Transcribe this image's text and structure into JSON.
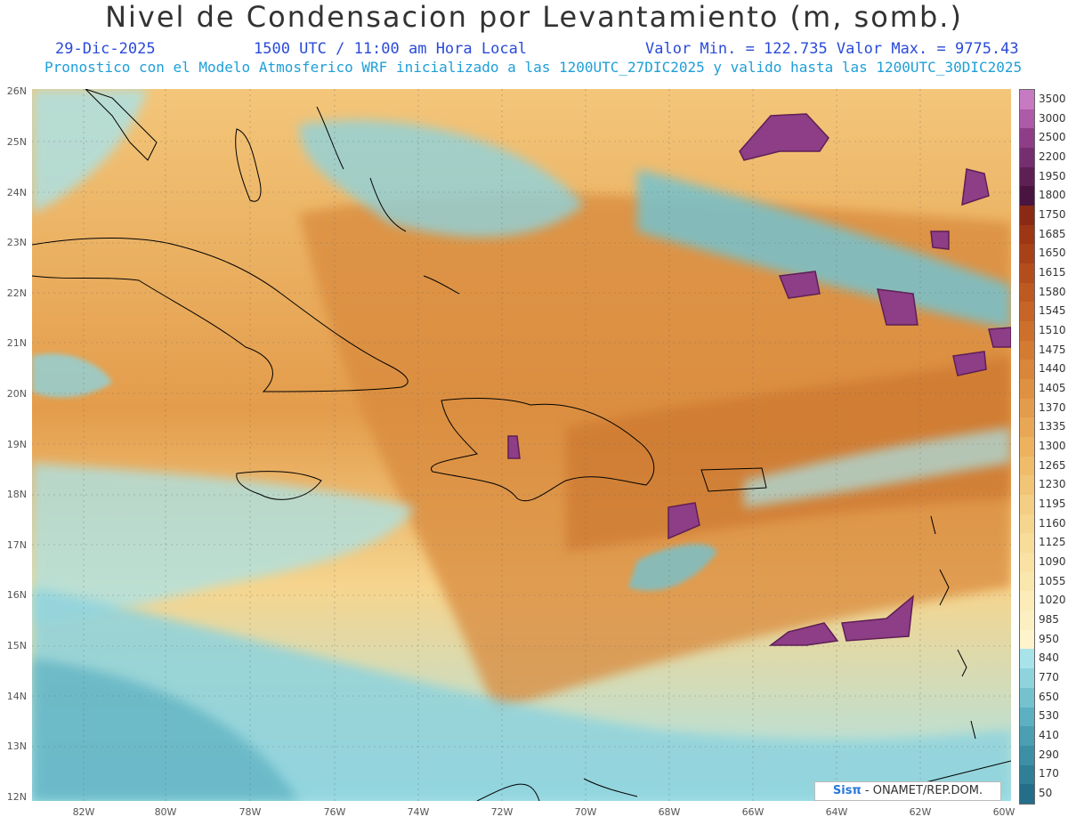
{
  "header": {
    "title": "Nivel de Condensacion por Levantamiento (m, somb.)",
    "date": "29-Dic-2025",
    "time": "1500 UTC / 11:00 am Hora Local",
    "minmax": "Valor Min. = 122.735  Valor Max. = 9775.43",
    "forecast": "Pronostico con el Modelo Atmosferico WRF inicializado a las 1200UTC_27DIC2025 y valido hasta las  1200UTC_30DIC2025"
  },
  "map": {
    "lat_labels": [
      "26N",
      "25N",
      "24N",
      "23N",
      "22N",
      "21N",
      "20N",
      "19N",
      "18N",
      "17N",
      "16N",
      "15N",
      "14N",
      "13N",
      "12N"
    ],
    "lon_labels": [
      "82W",
      "80W",
      "78W",
      "76W",
      "74W",
      "72W",
      "70W",
      "68W",
      "66W",
      "64W",
      "62W",
      "60W"
    ],
    "credit_brand": "Sisπ",
    "credit_text": " - ONAMET/REP.DOM."
  },
  "colorbar": {
    "labels": [
      "3500",
      "3000",
      "2500",
      "2200",
      "1950",
      "1800",
      "1750",
      "1685",
      "1650",
      "1615",
      "1580",
      "1545",
      "1510",
      "1475",
      "1440",
      "1405",
      "1370",
      "1335",
      "1300",
      "1265",
      "1230",
      "1195",
      "1160",
      "1125",
      "1090",
      "1055",
      "1020",
      "985",
      "950",
      "840",
      "770",
      "650",
      "530",
      "410",
      "290",
      "170",
      "50"
    ],
    "colors": [
      "#c77ac2",
      "#ad5aa8",
      "#8e3d87",
      "#752f70",
      "#5e1f55",
      "#4a1440",
      "#8a2a14",
      "#9c3614",
      "#a84118",
      "#b44d1c",
      "#bd5a22",
      "#c66527",
      "#cd702c",
      "#d47b33",
      "#da863a",
      "#df9142",
      "#e39c4b",
      "#e8a755",
      "#ecb25f",
      "#efbc6a",
      "#f2c576",
      "#f4ce82",
      "#f6d58e",
      "#f8dc99",
      "#f9e2a4",
      "#fae7ae",
      "#fbecb8",
      "#fcf0c2",
      "#fdf4cc",
      "#a9e3ea",
      "#8fd3dd",
      "#75c2cf",
      "#5cb0c1",
      "#4b9fb3",
      "#3c8fa5",
      "#2f7f97",
      "#236f89"
    ],
    "units": "m"
  }
}
